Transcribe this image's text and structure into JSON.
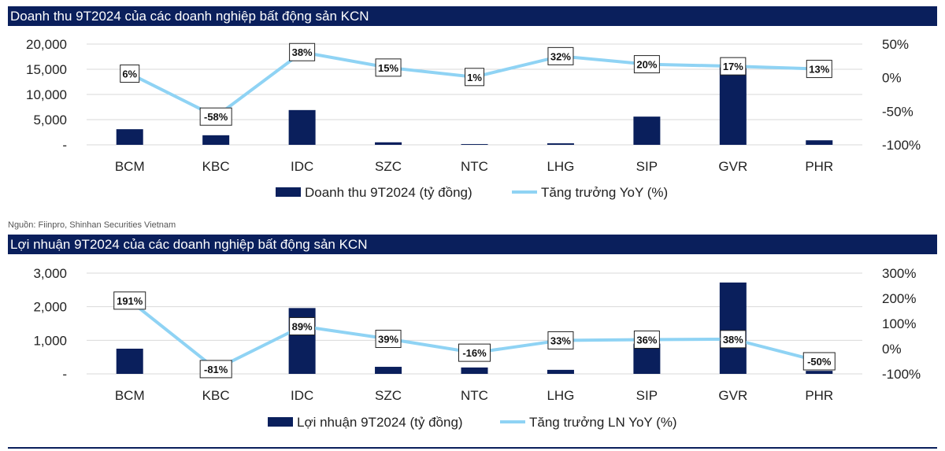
{
  "colors": {
    "bar": "#0a1f5c",
    "line": "#8fd3f4",
    "header": "#0a1f5c"
  },
  "source": "Nguồn: Fiinpro, Shinhan Securities Vietnam",
  "chart_data": [
    {
      "type": "bar+line",
      "title": "Doanh thu 9T2024 của các doanh nghiệp bất động sản KCN",
      "categories": [
        "BCM",
        "KBC",
        "IDC",
        "SZC",
        "NTC",
        "LHG",
        "SIP",
        "GVR",
        "PHR"
      ],
      "series": [
        {
          "name": "Doanh thu 9T2024 (tỷ đồng)",
          "type": "bar",
          "axis": "left",
          "values": [
            3100,
            1900,
            6900,
            500,
            150,
            300,
            5600,
            15500,
            900
          ]
        },
        {
          "name": "Tăng trưởng YoY (%)",
          "type": "line",
          "axis": "right",
          "values": [
            6,
            -58,
            38,
            15,
            1,
            32,
            20,
            17,
            13
          ],
          "labels": [
            "6%",
            "-58%",
            "38%",
            "15%",
            "1%",
            "32%",
            "20%",
            "17%",
            "13%"
          ]
        }
      ],
      "ylim": [
        0,
        20000
      ],
      "yticks": [
        "-",
        "5,000",
        "10,000",
        "15,000",
        "20,000"
      ],
      "y2lim": [
        -100,
        50
      ],
      "y2ticks": [
        "-100%",
        "-50%",
        "0%",
        "50%"
      ],
      "grid": true,
      "legend": "bottom"
    },
    {
      "type": "bar+line",
      "title": "Lợi nhuận 9T2024 của các doanh nghiệp bất động sản KCN",
      "categories": [
        "BCM",
        "KBC",
        "IDC",
        "SZC",
        "NTC",
        "LHG",
        "SIP",
        "GVR",
        "PHR"
      ],
      "series": [
        {
          "name": "Lợi nhuận 9T2024 (tỷ đồng)",
          "type": "bar",
          "axis": "left",
          "values": [
            750,
            40,
            1960,
            210,
            190,
            120,
            900,
            2720,
            90
          ]
        },
        {
          "name": "Tăng trưởng LN YoY (%)",
          "type": "line",
          "axis": "right",
          "values": [
            191,
            -81,
            89,
            39,
            -16,
            33,
            36,
            38,
            -50
          ],
          "labels": [
            "191%",
            "-81%",
            "89%",
            "39%",
            "-16%",
            "33%",
            "36%",
            "38%",
            "-50%"
          ]
        }
      ],
      "ylim": [
        0,
        3000
      ],
      "yticks": [
        "-",
        "1,000",
        "2,000",
        "3,000"
      ],
      "y2lim": [
        -100,
        300
      ],
      "y2ticks": [
        "-100%",
        "0%",
        "100%",
        "200%",
        "300%"
      ],
      "grid": true,
      "legend": "bottom"
    }
  ]
}
